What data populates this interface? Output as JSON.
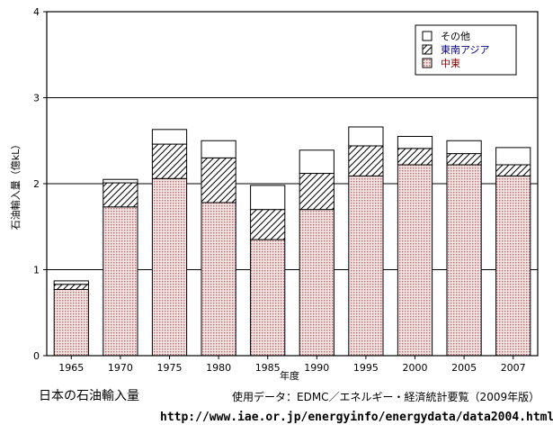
{
  "chart_data": {
    "type": "bar",
    "stacked": true,
    "title": "",
    "xlabel": "年度",
    "ylabel": "石油輸入量（億kL）",
    "ylim": [
      0,
      4
    ],
    "yticks": [
      "0",
      "1",
      "2",
      "3",
      "4"
    ],
    "grid": true,
    "legend_position": "top-right",
    "categories": [
      "1965",
      "1970",
      "1975",
      "1980",
      "1985",
      "1990",
      "1995",
      "2000",
      "2005",
      "2007"
    ],
    "series": [
      {
        "name": "中東",
        "values": [
          0.77,
          1.73,
          2.06,
          1.78,
          1.35,
          1.7,
          2.09,
          2.22,
          2.22,
          2.09
        ],
        "pattern": "dots",
        "color": "#cc8a8a"
      },
      {
        "name": "東南アジア",
        "values": [
          0.06,
          0.28,
          0.4,
          0.52,
          0.35,
          0.42,
          0.35,
          0.19,
          0.13,
          0.13
        ],
        "pattern": "hatch",
        "color": "#000000"
      },
      {
        "name": "その他",
        "values": [
          0.04,
          0.04,
          0.17,
          0.2,
          0.28,
          0.27,
          0.22,
          0.14,
          0.15,
          0.2
        ],
        "pattern": "none",
        "color": "#ffffff"
      }
    ]
  },
  "captions": {
    "left": "日本の石油輸入量",
    "source": "使用データ：EDMC／エネルギー・経済統計要覧（2009年版）",
    "url": "http://www.iae.or.jp/energyinfo/energydata/data2004.html"
  },
  "legend_text_colors": [
    "#000000",
    "#000080",
    "#800000"
  ]
}
